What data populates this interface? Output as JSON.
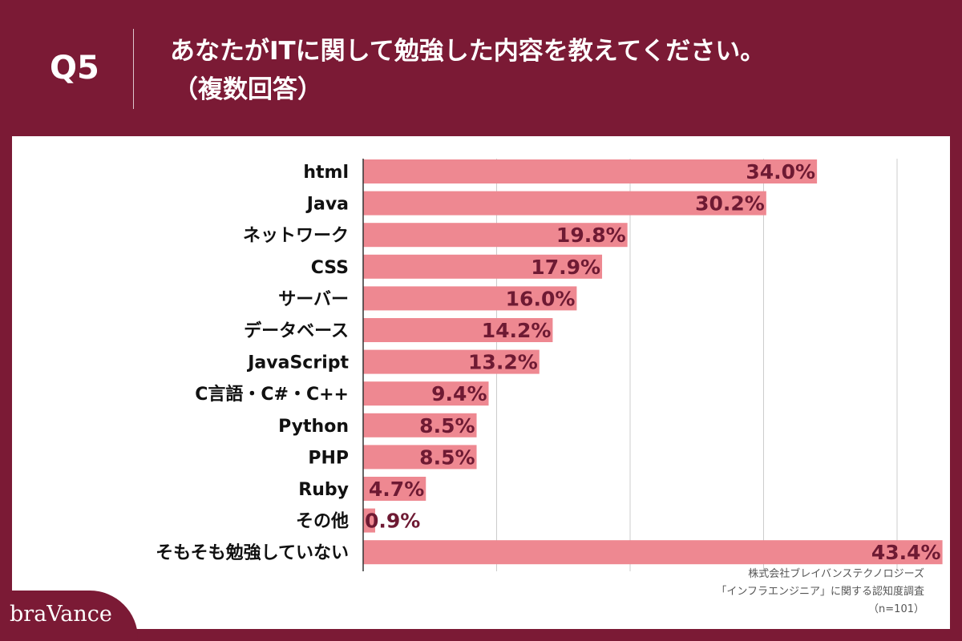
{
  "header": {
    "question_no": "Q5",
    "title_line1": "あなたがITに関して勉強した内容を教えてください。",
    "title_line2": "（複数回答）"
  },
  "source": {
    "line1": "株式会社ブレイバンステクノロジーズ",
    "line2": "「インフラエンジニア」に関する認知度調査",
    "line3": "（n=101）"
  },
  "brand": {
    "logo_text": "braVance"
  },
  "colors": {
    "background": "#7b1a35",
    "bar": "#ee8891",
    "value_label": "#6e1a33",
    "grid": "#cccccc"
  },
  "chart_data": {
    "type": "bar",
    "orientation": "horizontal",
    "title": "",
    "xlabel": "",
    "ylabel": "",
    "xlim": [
      0,
      50
    ],
    "grid": true,
    "value_suffix": "%",
    "categories": [
      "html",
      "Java",
      "ネットワーク",
      "CSS",
      "サーバー",
      "データベース",
      "JavaScript",
      "C言語・C#・C++",
      "Python",
      "PHP",
      "Ruby",
      "その他",
      "そもそも勉強していない"
    ],
    "values": [
      34.0,
      30.2,
      19.8,
      17.9,
      16.0,
      14.2,
      13.2,
      9.4,
      8.5,
      8.5,
      4.7,
      0.9,
      43.4
    ]
  }
}
